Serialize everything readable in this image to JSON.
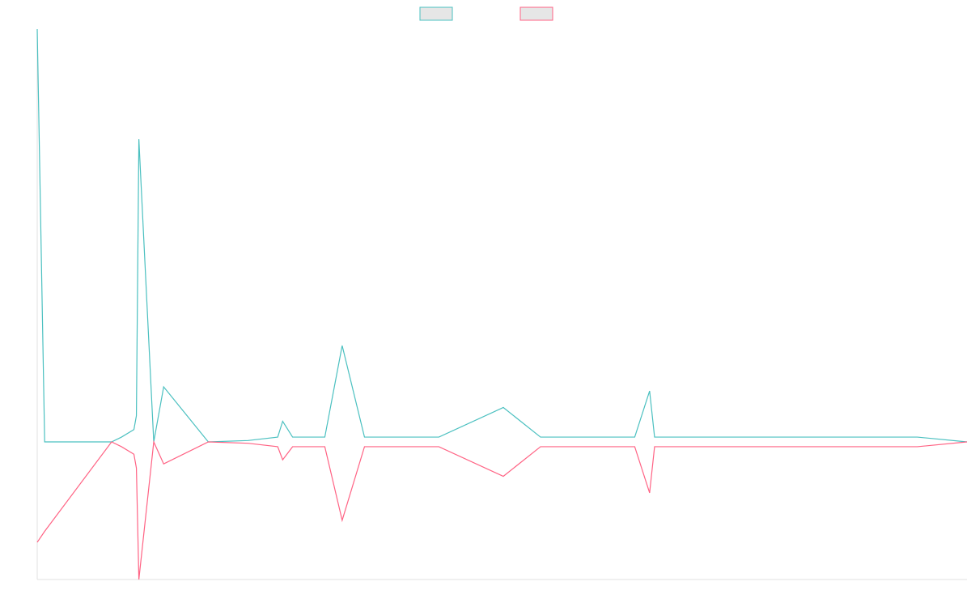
{
  "chart_data": {
    "type": "line",
    "title": "",
    "xlabel": "",
    "ylabel": "",
    "legend": {
      "placement": "top-center",
      "entries": [
        {
          "color": "#4bc0c0",
          "fill": "#e6e6e6",
          "label": ""
        },
        {
          "color": "#ff6384",
          "fill": "#e6e6e6",
          "label": ""
        }
      ]
    },
    "grid": false,
    "x": [
      0,
      3,
      30,
      34,
      39,
      40,
      41,
      47,
      51,
      69,
      85,
      97,
      99,
      103,
      108,
      115,
      116,
      123,
      132,
      138,
      141,
      147,
      152,
      159,
      162,
      188,
      203,
      205,
      213,
      216,
      220,
      230,
      241,
      247,
      249,
      254,
      259,
      266,
      268,
      277,
      279,
      293,
      299,
      304,
      306,
      315,
      325,
      330,
      337,
      351,
      355,
      375
    ],
    "ylim": [
      -10,
      30
    ],
    "series": [
      {
        "name": "",
        "color": "#4bc0c0",
        "values": [
          30,
          0,
          0,
          0.35,
          0.9,
          1.9,
          22,
          0,
          4,
          0,
          0.1,
          0.35,
          1.5,
          0.35,
          0.35,
          0.35,
          0.35,
          7,
          0.35,
          0.35,
          0.35,
          0.35,
          0.35,
          0.35,
          0.35,
          2.5,
          0.35,
          0.35,
          0.35,
          0.35,
          0.35,
          0.35,
          0.35,
          3.7,
          0.35,
          0.35,
          0.35,
          0.35,
          0.35,
          0.35,
          0.35,
          0.35,
          0.35,
          0.35,
          0.35,
          0.35,
          0.35,
          0.35,
          0.35,
          0.35,
          0.35,
          0
        ]
      },
      {
        "name": "",
        "color": "#ff6384",
        "values": [
          -7.3,
          -6.5,
          0,
          -0.35,
          -0.9,
          -1.9,
          -10,
          0,
          -1.6,
          0,
          -0.1,
          -0.35,
          -1.3,
          -0.35,
          -0.35,
          -0.35,
          -0.35,
          -5.7,
          -0.35,
          -0.35,
          -0.35,
          -0.35,
          -0.35,
          -0.35,
          -0.35,
          -2.5,
          -0.35,
          -0.35,
          -0.35,
          -0.35,
          -0.35,
          -0.35,
          -0.35,
          -3.7,
          -0.35,
          -0.35,
          -0.35,
          -0.35,
          -0.35,
          -0.35,
          -0.35,
          -0.35,
          -0.35,
          -0.35,
          -0.35,
          -0.35,
          -0.35,
          -0.35,
          -0.35,
          -0.35,
          -0.35,
          0
        ]
      }
    ]
  }
}
